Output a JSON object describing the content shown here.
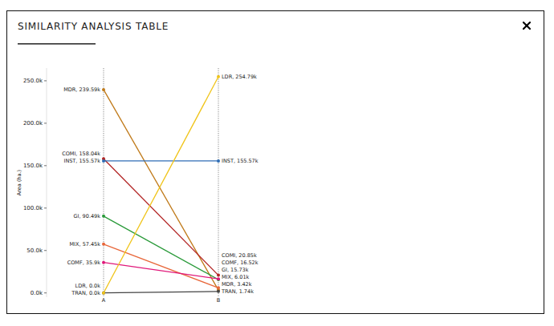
{
  "chart_data": {
    "type": "slope",
    "title": "SIMILARITY ANALYSIS TABLE",
    "y_label": "Area (ha.)",
    "categories": [
      "A",
      "B"
    ],
    "ylim": [
      -5000,
      265000
    ],
    "yticks": [
      {
        "value": 0,
        "label": "0.0k"
      },
      {
        "value": 50000,
        "label": "50.0k"
      },
      {
        "value": 100000,
        "label": "100.0k"
      },
      {
        "value": 150000,
        "label": "150.0k"
      },
      {
        "value": 200000,
        "label": "200.0k"
      },
      {
        "value": 250000,
        "label": "250.0k"
      }
    ],
    "grid": false,
    "data_labels": true,
    "series": [
      {
        "name": "MDR",
        "color": "#c07a1a",
        "values": [
          239590,
          3420
        ],
        "value_labels": [
          "MDR, 239.59k",
          "MDR, 3.42k"
        ]
      },
      {
        "name": "COMI",
        "color": "#b22424",
        "values": [
          158040,
          20850
        ],
        "value_labels": [
          "COMI, 158.04k",
          "COMI, 20.85k"
        ]
      },
      {
        "name": "INST",
        "color": "#2f6db5",
        "values": [
          155570,
          155570
        ],
        "value_labels": [
          "INST, 155.57k",
          "INST, 155.57k"
        ]
      },
      {
        "name": "GI",
        "color": "#2a9a3a",
        "values": [
          90490,
          15730
        ],
        "value_labels": [
          "GI, 90.49k",
          "GI, 15.73k"
        ]
      },
      {
        "name": "MIX",
        "color": "#e8673a",
        "values": [
          57450,
          6010
        ],
        "value_labels": [
          "MIX, 57.45k",
          "MIX, 6.01k"
        ]
      },
      {
        "name": "COMF",
        "color": "#e0187a",
        "values": [
          35900,
          16520
        ],
        "value_labels": [
          "COMF, 35.9k",
          "COMF, 16.52k"
        ]
      },
      {
        "name": "TRAN",
        "color": "#444444",
        "values": [
          0,
          1740
        ],
        "value_labels": [
          "TRAN, 0.0k",
          "TRAN, 1.74k"
        ]
      },
      {
        "name": "LDR",
        "color": "#f0c419",
        "values": [
          0,
          254790
        ],
        "value_labels": [
          "LDR, 0.0k",
          "LDR, 254.79k"
        ]
      }
    ]
  }
}
